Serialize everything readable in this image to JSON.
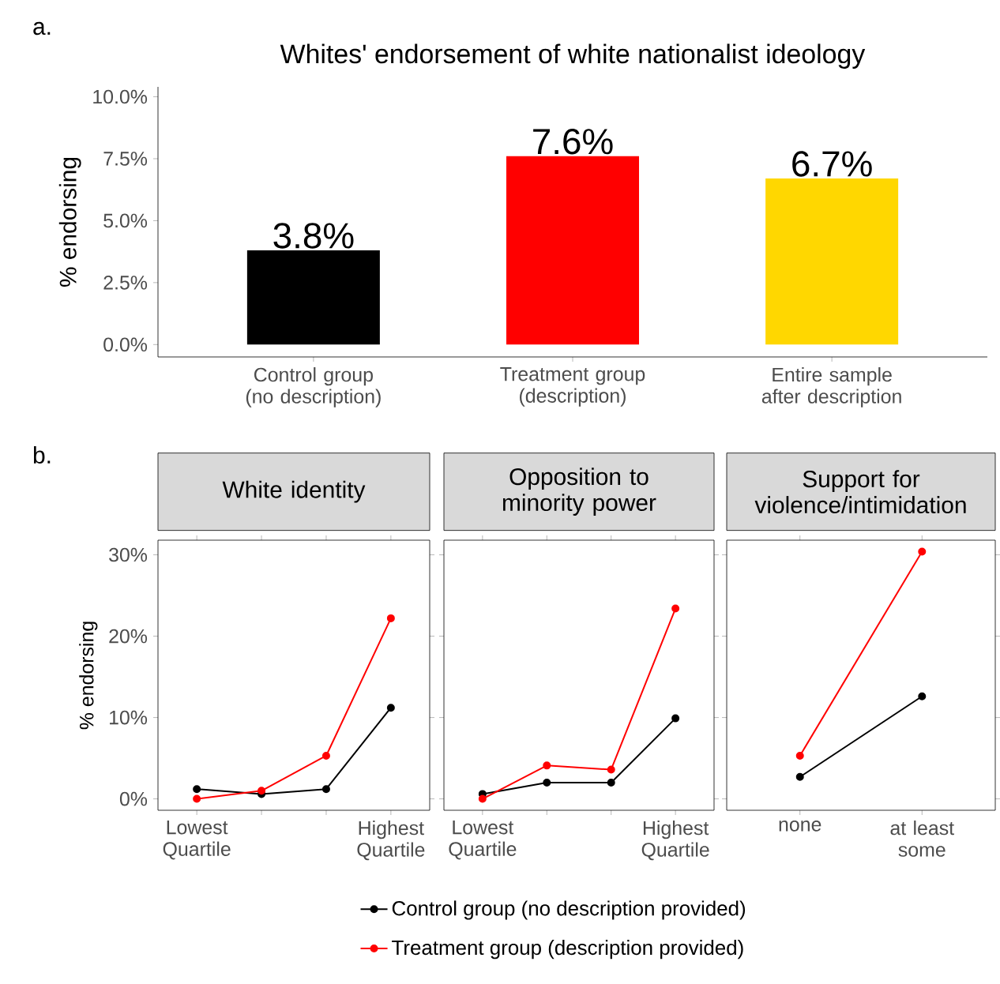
{
  "chart_data": [
    {
      "type": "bar",
      "title": "Whites' endorsement of white nationalist ideology",
      "ylabel": "% endorsing",
      "categories": [
        "Control group (no description)",
        "Treatment group (description)",
        "Entire sample after description"
      ],
      "values": [
        3.8,
        7.6,
        6.7
      ],
      "colors": [
        "#000000",
        "#ff0000",
        "#ffd700"
      ],
      "value_labels": [
        "3.8%",
        "7.6%",
        "6.7%"
      ],
      "ylim": [
        -0.5,
        10.4
      ],
      "yticks": [
        {
          "value": 0,
          "label": "0.0%"
        },
        {
          "value": 2.5,
          "label": "2.5%"
        },
        {
          "value": 5,
          "label": "5.0%"
        },
        {
          "value": 7.5,
          "label": "7.5%"
        },
        {
          "value": 10,
          "label": "10.0%"
        }
      ],
      "annotations": [
        "a."
      ]
    },
    {
      "type": "line",
      "title": "White identity",
      "ylabel": "% endorsing",
      "marker": "circle",
      "categories": [
        "Lowest Quartile",
        null,
        null,
        "Highest Quartile"
      ],
      "series": [
        {
          "color": "#000000",
          "values": [
            1.2,
            0.6,
            1.2,
            11.2
          ]
        },
        {
          "color": "#ff0000",
          "values": [
            0,
            1.0,
            5.3,
            22.2
          ]
        }
      ],
      "ylim": [
        -1.4,
        31.8
      ],
      "yticks": [
        {
          "value": 0,
          "label": "0%"
        },
        {
          "value": 10,
          "label": "10%"
        },
        {
          "value": 20,
          "label": "20%"
        },
        {
          "value": 30,
          "label": "30%"
        }
      ],
      "annotations": [
        "b."
      ]
    },
    {
      "type": "line",
      "title": "Opposition to minority power",
      "marker": "circle",
      "legend": "bottom",
      "tick_labels": "x",
      "categories": [
        "Lowest Quartile",
        null,
        null,
        "Highest Quartile"
      ],
      "series": [
        {
          "name": "Control group (no description provided)",
          "color": "#000000",
          "values": [
            0.6,
            2.0,
            2.0,
            9.9
          ]
        },
        {
          "name": "Treatment group (description provided)",
          "color": "#ff0000",
          "values": [
            0,
            4.1,
            3.6,
            23.4
          ]
        }
      ],
      "ylim": [
        -1.4,
        31.8
      ],
      "yticks": [
        {
          "value": 0,
          "label": null
        },
        {
          "value": 10,
          "label": null
        },
        {
          "value": 20,
          "label": null
        },
        {
          "value": 30,
          "label": null
        }
      ]
    },
    {
      "type": "line",
      "title": "Support for violence/intimidation",
      "marker": "circle",
      "tick_labels": "x",
      "categories": [
        "none",
        "at least some"
      ],
      "series": [
        {
          "color": "#000000",
          "values": [
            2.7,
            12.6
          ]
        },
        {
          "color": "#ff0000",
          "values": [
            5.3,
            30.4
          ]
        }
      ],
      "ylim": [
        -1.4,
        31.8
      ],
      "yticks": [
        {
          "value": 0,
          "label": null
        },
        {
          "value": 10,
          "label": null
        },
        {
          "value": 20,
          "label": null
        },
        {
          "value": 30,
          "label": null
        }
      ]
    }
  ]
}
